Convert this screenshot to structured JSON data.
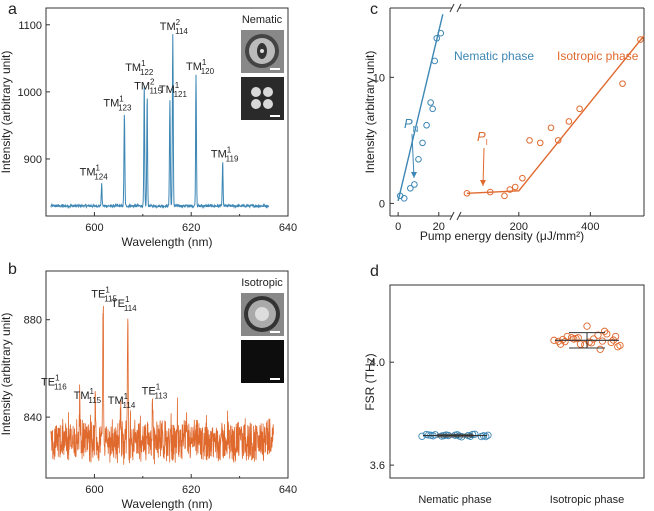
{
  "panels": {
    "a": {
      "letter": "a"
    },
    "b": {
      "letter": "b"
    },
    "c": {
      "letter": "c"
    },
    "d": {
      "letter": "d"
    }
  },
  "chart_data": [
    {
      "id": "a",
      "type": "line",
      "xlabel": "Wavelength (nm)",
      "ylabel": "Intensity (arbitrary unit)",
      "xlim": [
        590,
        640
      ],
      "ylim": [
        815,
        1125
      ],
      "xticks": [
        600,
        620,
        640
      ],
      "yticks": [
        900,
        1000,
        1100
      ],
      "color": "#3d87b5",
      "inset_label": "Nematic",
      "baseline": 830,
      "peaks": [
        {
          "x": 601.5,
          "y": 862,
          "label": "TM",
          "sup": "1",
          "sub": "124"
        },
        {
          "x": 606.2,
          "y": 968,
          "label": "TM",
          "sup": "1",
          "sub": "123"
        },
        {
          "x": 610.3,
          "y": 1013,
          "label": "TM",
          "sup": "1",
          "sub": "122"
        },
        {
          "x": 610.9,
          "y": 993,
          "label": "TM",
          "sup": "2",
          "sub": "115"
        },
        {
          "x": 615.6,
          "y": 988,
          "label": "TM",
          "sup": "1",
          "sub": "121"
        },
        {
          "x": 616.2,
          "y": 1085,
          "label": "TM",
          "sup": "2",
          "sub": "114"
        },
        {
          "x": 621.0,
          "y": 1025,
          "label": "TM",
          "sup": "1",
          "sub": "120"
        },
        {
          "x": 626.5,
          "y": 895,
          "label": "TM",
          "sup": "1",
          "sub": "119"
        }
      ]
    },
    {
      "id": "b",
      "type": "line",
      "xlabel": "Wavelength (nm)",
      "ylabel": "Intensity (arbitrary unit)",
      "xlim": [
        590,
        640
      ],
      "ylim": [
        815,
        900
      ],
      "xticks": [
        600,
        620,
        640
      ],
      "yticks": [
        840,
        880
      ],
      "color": "#e0692e",
      "inset_label": "Isotropic",
      "baseline": 830,
      "peaks": [
        {
          "x": 597.0,
          "y": 848,
          "label": "TE",
          "sup": "1",
          "sub": "116"
        },
        {
          "x": 600.2,
          "y": 845,
          "label": "TM",
          "sup": "1",
          "sub": "115"
        },
        {
          "x": 601.8,
          "y": 887,
          "label": "TE",
          "sup": "1",
          "sub": "115"
        },
        {
          "x": 605.4,
          "y": 843,
          "label": "TM",
          "sup": "1",
          "sub": "114"
        },
        {
          "x": 606.9,
          "y": 882,
          "label": "TE",
          "sup": "1",
          "sub": "114"
        },
        {
          "x": 612.0,
          "y": 846,
          "label": "TE",
          "sup": "1",
          "sub": "113"
        }
      ]
    },
    {
      "id": "c",
      "type": "scatter",
      "xlabel": "Pump energy density (μJ/mm²)",
      "ylabel": "Intensity (arbitrary unit)",
      "xlim": [
        -20,
        550
      ],
      "ylim": [
        -1,
        15.5
      ],
      "xticks": [
        0,
        20,
        200,
        400
      ],
      "yticks": [
        0,
        10
      ],
      "axis_break": [
        27,
        55
      ],
      "series": [
        {
          "name": "Nematic phase",
          "color": "#3d87b5",
          "x": [
            1,
            3,
            6,
            8,
            10,
            12,
            14,
            16,
            17,
            18,
            19,
            21
          ],
          "y": [
            0.6,
            0.4,
            1.2,
            1.5,
            3.5,
            4.8,
            6.2,
            8.0,
            7.5,
            11.3,
            13.1,
            13.5
          ],
          "fit_x": [
            0,
            22
          ],
          "fit_y": [
            0.2,
            15.0
          ]
        },
        {
          "name": "Isotropic phase",
          "color": "#e0692e",
          "x": [
            55,
            120,
            160,
            175,
            190,
            210,
            230,
            260,
            290,
            310,
            340,
            370,
            490,
            540
          ],
          "y": [
            0.8,
            0.9,
            0.6,
            1.1,
            1.3,
            2.0,
            5.0,
            4.8,
            6.0,
            5.0,
            6.5,
            7.5,
            9.5,
            13.0
          ],
          "fit_x": [
            55,
            200,
            550
          ],
          "fit_y": [
            0.8,
            1.0,
            13.3
          ]
        }
      ],
      "annotations": [
        {
          "text": "P",
          "sub": "N",
          "series": "Nematic phase"
        },
        {
          "text": "P",
          "sub": "I",
          "series": "Isotropic phase"
        }
      ]
    },
    {
      "id": "d",
      "type": "scatter",
      "xlabel": "",
      "ylabel": "FSR (THz)",
      "ylim": [
        3.55,
        4.3
      ],
      "yticks": [
        3.6,
        4.0
      ],
      "categories": [
        "Nematic phase",
        "Isotropic phase"
      ],
      "series": [
        {
          "name": "Nematic phase",
          "color": "#3d87b5",
          "mean": 3.715,
          "sd": 0.005,
          "values": [
            3.712,
            3.718,
            3.715,
            3.71,
            3.72,
            3.716,
            3.714,
            3.717,
            3.713,
            3.719,
            3.711,
            3.716,
            3.715,
            3.718,
            3.712,
            3.714,
            3.717,
            3.713,
            3.716,
            3.715,
            3.711,
            3.719
          ]
        },
        {
          "name": "Isotropic phase",
          "color": "#e0692e",
          "mean": 4.085,
          "sd": 0.03,
          "values": [
            4.085,
            4.1,
            4.07,
            4.09,
            4.11,
            4.065,
            4.08,
            4.095,
            4.075,
            4.12,
            4.06,
            4.088,
            4.092,
            4.078,
            4.082,
            4.1,
            4.07,
            4.09,
            4.14,
            4.05,
            4.086,
            4.081,
            4.095,
            4.068,
            4.105,
            4.077
          ]
        }
      ]
    }
  ]
}
